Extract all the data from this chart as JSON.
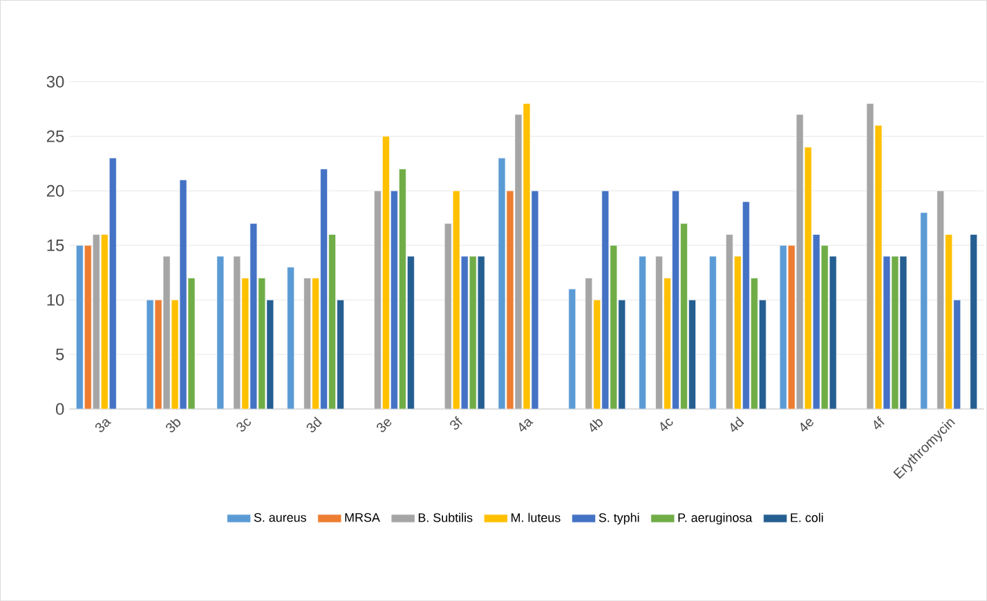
{
  "chart_data": {
    "type": "bar",
    "categories": [
      "3a",
      "3b",
      "3c",
      "3d",
      "3e",
      "3f",
      "4a",
      "4b",
      "4c",
      "4d",
      "4e",
      "4f",
      "Erythromycin"
    ],
    "series": [
      {
        "name": "S. aureus",
        "color": "#5b9bd5",
        "values": [
          15,
          10,
          14,
          13,
          null,
          null,
          23,
          11,
          14,
          14,
          15,
          null,
          18
        ]
      },
      {
        "name": "MRSA",
        "color": "#ed7d31",
        "values": [
          15,
          10,
          null,
          null,
          null,
          null,
          20,
          null,
          null,
          null,
          15,
          null,
          null
        ]
      },
      {
        "name": "B. Subtilis",
        "color": "#a5a5a5",
        "values": [
          16,
          14,
          14,
          12,
          20,
          17,
          27,
          12,
          14,
          16,
          27,
          28,
          20
        ]
      },
      {
        "name": "M. luteus",
        "color": "#ffc000",
        "values": [
          16,
          10,
          12,
          12,
          25,
          20,
          28,
          10,
          12,
          14,
          24,
          26,
          16
        ]
      },
      {
        "name": "S. typhi",
        "color": "#4472c4",
        "values": [
          23,
          21,
          17,
          22,
          20,
          14,
          20,
          20,
          20,
          19,
          16,
          14,
          10
        ]
      },
      {
        "name": "P.  aeruginosa",
        "color": "#70ad47",
        "values": [
          null,
          12,
          12,
          16,
          22,
          14,
          null,
          15,
          17,
          12,
          15,
          14,
          null
        ]
      },
      {
        "name": "E. coli",
        "color": "#255e91",
        "values": [
          null,
          null,
          10,
          10,
          14,
          14,
          null,
          10,
          10,
          10,
          14,
          14,
          16
        ]
      }
    ],
    "ylim": [
      0,
      30
    ],
    "yticks": [
      0,
      5,
      10,
      15,
      20,
      25,
      30
    ],
    "grid": "y",
    "legend": "bottom"
  }
}
